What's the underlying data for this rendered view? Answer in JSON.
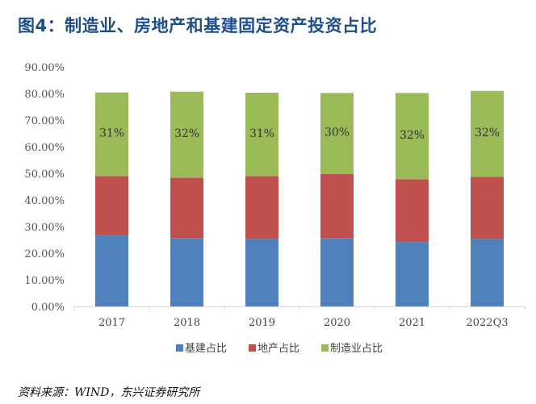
{
  "title": "图4：制造业、房地产和基建固定资产投资占比",
  "source": "资料来源：WIND，东兴证券研究所",
  "chart_data": {
    "type": "bar",
    "stacked": true,
    "title": "图4：制造业、房地产和基建固定资产投资占比",
    "xlabel": "",
    "ylabel": "",
    "ylim": [
      0,
      90
    ],
    "yticks": [
      0,
      10,
      20,
      30,
      40,
      50,
      60,
      70,
      80,
      90
    ],
    "ytick_labels": [
      "0.00%",
      "10.00%",
      "20.00%",
      "30.00%",
      "40.00%",
      "50.00%",
      "60.00%",
      "70.00%",
      "80.00%",
      "90.00%"
    ],
    "grid": false,
    "legend_position": "bottom",
    "categories": [
      "2017",
      "2018",
      "2019",
      "2020",
      "2021",
      "2022Q3"
    ],
    "series": [
      {
        "name": "基建占比",
        "color": "#4f81bd",
        "values": [
          26.7,
          25.7,
          25.4,
          25.7,
          24.2,
          25.4
        ]
      },
      {
        "name": "地产占比",
        "color": "#c0504d",
        "values": [
          22.3,
          22.7,
          23.6,
          24.1,
          23.6,
          23.3
        ]
      },
      {
        "name": "制造业占比",
        "color": "#9bbb59",
        "values": [
          31.4,
          32.3,
          31.3,
          30.4,
          32.4,
          32.3
        ],
        "data_labels": [
          "31%",
          "32%",
          "31%",
          "30%",
          "32%",
          "32%"
        ]
      }
    ]
  }
}
